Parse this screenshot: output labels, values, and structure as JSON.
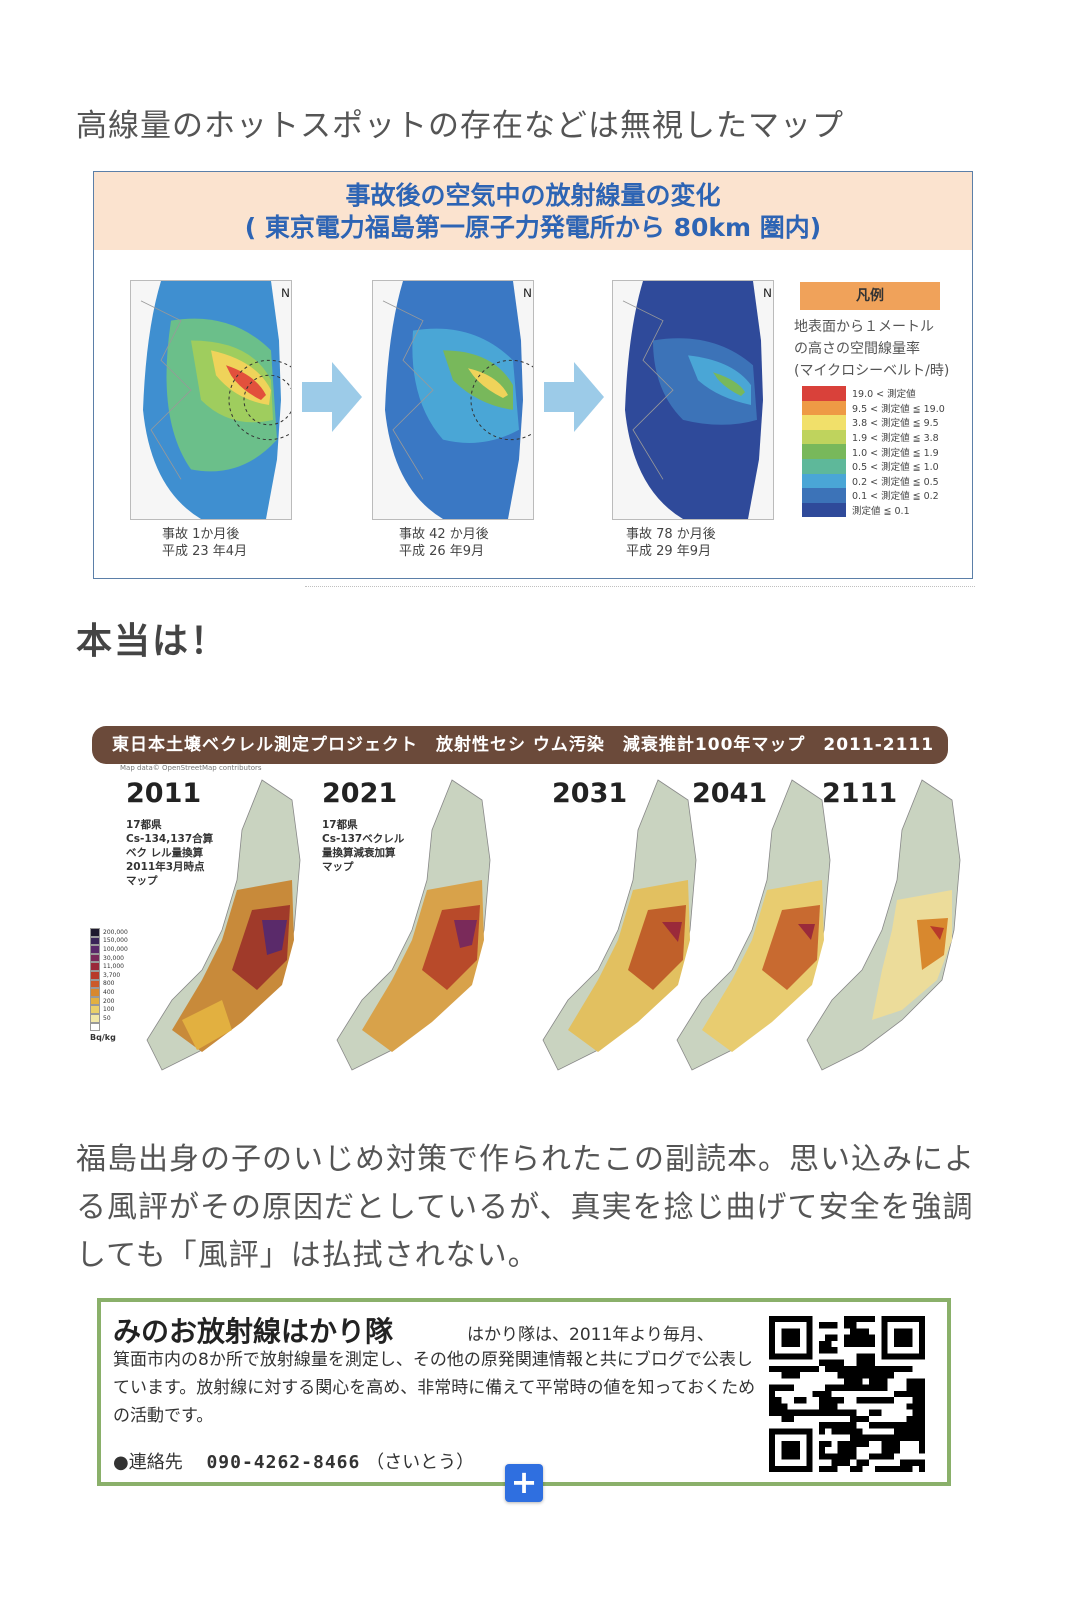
{
  "caption": "高線量のホットスポットの存在などは無視したマップ",
  "figure1": {
    "title_line1": "事故後の空気中の放射線量の変化",
    "title_line2": "( 東京電力福島第一原子力発電所から 80km 圏内)",
    "maps": [
      {
        "caption_line1": "事故 1か月後",
        "caption_line2": "平成 23 年4月"
      },
      {
        "caption_line1": "事故 42 か月後",
        "caption_line2": "平成 26 年9月"
      },
      {
        "caption_line1": "事故 78 か月後",
        "caption_line2": "平成 29 年9月"
      }
    ],
    "legend": {
      "title": "凡例",
      "desc_line1": "地表面から１メートル",
      "desc_line2": "の高さの空間線量率",
      "desc_line3": "(マイクロシーベルト/時)",
      "items": [
        {
          "label": "19.0 < 測定値",
          "color": "#d9413a"
        },
        {
          "label": "9.5 < 測定値 ≦ 19.0",
          "color": "#ee9a45"
        },
        {
          "label": "3.8 < 測定値 ≦ 9.5",
          "color": "#f1e06a"
        },
        {
          "label": "1.9 < 測定値 ≦ 3.8",
          "color": "#bfd35d"
        },
        {
          "label": "1.0 < 測定値 ≦ 1.9",
          "color": "#78b85b"
        },
        {
          "label": "0.5 < 測定値 ≦ 1.0",
          "color": "#5eb89a"
        },
        {
          "label": "0.2 < 測定値 ≦ 0.5",
          "color": "#4aa6d6"
        },
        {
          "label": "0.1 < 測定値 ≦ 0.2",
          "color": "#3c73b8"
        },
        {
          "label": "測定値 ≦ 0.1",
          "color": "#2f4a9a"
        }
      ]
    }
  },
  "heading": "本当は！",
  "figure2": {
    "banner": "東日本土壌ベクレル測定プロジェクト　放射性セシ ウム汚染　減衰推計100年マップ　2011-2111",
    "credit": "Map data© OpenStreetMap contributors",
    "panels": [
      {
        "year": "2011",
        "note_line1": "17都県",
        "note_line2": "Cs-134,137合算",
        "note_line3": "ベク レル量換算",
        "note_line4": "2011年3月時点",
        "note_line5": "マップ"
      },
      {
        "year": "2021",
        "note_line1": "17都県",
        "note_line2": "Cs-137ベクレル",
        "note_line3": "量換算減衰加算",
        "note_line4": "マップ",
        "note_line5": ""
      },
      {
        "year": "2031"
      },
      {
        "year": "2041"
      },
      {
        "year": "2111"
      }
    ],
    "scale": {
      "unit": "Bq/kg",
      "items": [
        {
          "label": "200,000",
          "color": "#1e1a2e"
        },
        {
          "label": "150,000",
          "color": "#3a2658"
        },
        {
          "label": "100,000",
          "color": "#5a2a6a"
        },
        {
          "label": "30,000",
          "color": "#7a2a5a"
        },
        {
          "label": "11,000",
          "color": "#9a2a3a"
        },
        {
          "label": "3,700",
          "color": "#b83a2a"
        },
        {
          "label": "800",
          "color": "#cc5a2a"
        },
        {
          "label": "400",
          "color": "#d8882e"
        },
        {
          "label": "200",
          "color": "#e2b040"
        },
        {
          "label": "100",
          "color": "#ead06a"
        },
        {
          "label": "50",
          "color": "#f2e8a8"
        },
        {
          "label": "",
          "color": "#ffffff"
        }
      ]
    }
  },
  "paragraph": "福島出身の子のいじめ対策で作られたこの副読本。思い込みによる風評がその原因だとしているが、真実を捻じ曲げて安全を強調しても「風評」は払拭されない。",
  "infobox": {
    "title": "みのお放射線はかり隊",
    "lead": "はかり隊は、2011年より毎月、",
    "body": "箕面市内の8か所で放射線量を測定し、その他の原発関連情報と共にブログで公表しています。放射線に対する関心を高め、非常時に備えて平常時の値を知っておくための活動です。",
    "contact_label": "●連絡先",
    "contact_number": "090-4262-8466",
    "contact_name": "（さいとう）"
  },
  "plus_button": "+"
}
